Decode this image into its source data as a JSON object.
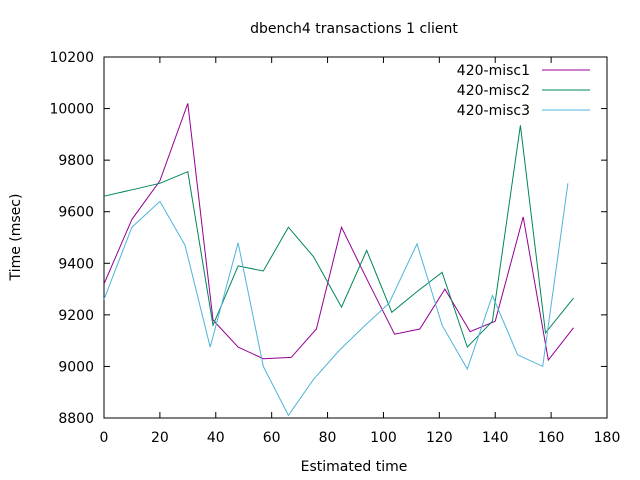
{
  "chart_data": {
    "type": "line",
    "title": "dbench4 transactions 1 client",
    "xlabel": "Estimated time",
    "ylabel": "Time (msec)",
    "xlim": [
      0,
      180
    ],
    "ylim": [
      8800,
      10200
    ],
    "xticks": [
      0,
      20,
      40,
      60,
      80,
      100,
      120,
      140,
      160,
      180
    ],
    "yticks": [
      8800,
      9000,
      9200,
      9400,
      9600,
      9800,
      10000,
      10200
    ],
    "grid": false,
    "legend_position": "top-right",
    "series": [
      {
        "name": "420-misc1",
        "color": "#940094",
        "x": [
          0,
          10,
          20,
          30,
          39,
          48,
          57,
          67,
          76,
          85,
          94,
          104,
          113,
          122,
          131,
          140,
          150,
          159,
          168
        ],
        "y": [
          9320,
          9570,
          9720,
          10020,
          9180,
          9075,
          9030,
          9035,
          9145,
          9540,
          9340,
          9125,
          9145,
          9300,
          9135,
          9175,
          9580,
          9025,
          9150
        ]
      },
      {
        "name": "420-misc2",
        "color": "#00865a",
        "x": [
          0,
          10,
          20,
          30,
          39,
          48,
          57,
          66,
          75,
          85,
          94,
          103,
          112,
          121,
          130,
          139,
          149,
          158,
          168
        ],
        "y": [
          9660,
          9685,
          9710,
          9755,
          9160,
          9390,
          9370,
          9540,
          9425,
          9230,
          9450,
          9210,
          9290,
          9365,
          9075,
          9175,
          9935,
          9130,
          9265
        ]
      },
      {
        "name": "420-misc3",
        "color": "#4fb4d8",
        "x": [
          0,
          10,
          20,
          29,
          38,
          48,
          57,
          66,
          75,
          84,
          93,
          102,
          112,
          121,
          130,
          139,
          148,
          157,
          166
        ],
        "y": [
          9260,
          9540,
          9640,
          9470,
          9075,
          9480,
          9000,
          8810,
          8950,
          9060,
          9155,
          9245,
          9475,
          9160,
          8990,
          9275,
          9045,
          9000,
          9710
        ]
      }
    ]
  }
}
